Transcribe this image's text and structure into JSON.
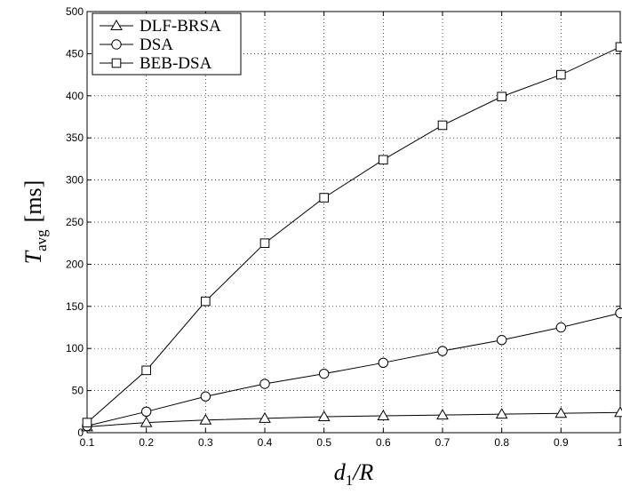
{
  "chart_data": {
    "type": "line",
    "xlabel_main": "d",
    "xlabel_sub": "1",
    "xlabel_rest": "/R",
    "ylabel_main": "T",
    "ylabel_sub": "avg",
    "ylabel_rest": "[ms]",
    "x": [
      0.1,
      0.2,
      0.3,
      0.4,
      0.5,
      0.6,
      0.7,
      0.8,
      0.9,
      1.0
    ],
    "x_tick_labels": [
      "0.1",
      "0.2",
      "0.3",
      "0.4",
      "0.5",
      "0.6",
      "0.7",
      "0.8",
      "0.9",
      "1"
    ],
    "y_ticks": [
      0,
      50,
      100,
      150,
      200,
      250,
      300,
      350,
      400,
      450,
      500
    ],
    "xlim": [
      0.1,
      1.0
    ],
    "ylim": [
      0,
      500
    ],
    "grid": true,
    "legend_position": "top-left",
    "series": [
      {
        "name": "DLF-BRSA",
        "marker": "triangle",
        "values": [
          7,
          12,
          15,
          17,
          19,
          20,
          21,
          22,
          23,
          24
        ]
      },
      {
        "name": "DSA",
        "marker": "circle",
        "values": [
          8,
          25,
          43,
          58,
          70,
          83,
          97,
          110,
          125,
          142
        ]
      },
      {
        "name": "BEB-DSA",
        "marker": "square",
        "values": [
          12,
          74,
          156,
          225,
          279,
          324,
          365,
          399,
          425,
          458
        ]
      }
    ]
  }
}
